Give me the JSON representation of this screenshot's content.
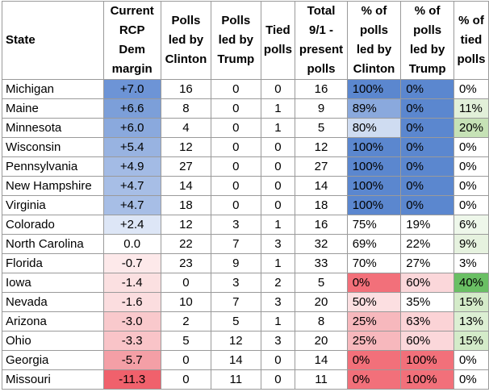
{
  "headers": {
    "state": "State",
    "margin_lines": [
      "Current",
      "RCP",
      "Dem",
      "margin"
    ],
    "clinton_lines": [
      "Polls",
      "led by",
      "Clinton"
    ],
    "trump_lines": [
      "Polls",
      "led by",
      "Trump"
    ],
    "tied_lines": [
      "Tied",
      "polls"
    ],
    "total_lines": [
      "Total",
      "9/1 -",
      "present",
      "polls"
    ],
    "pct_clinton_lines": [
      "% of",
      "polls",
      "led by",
      "Clinton"
    ],
    "pct_trump_lines": [
      "% of",
      "polls",
      "led by",
      "Trump"
    ],
    "pct_tied_lines": [
      "% of",
      "tied",
      "polls"
    ]
  },
  "rows": [
    {
      "state": "Michigan",
      "margin": "+7.0",
      "clinton": "16",
      "trump": "0",
      "tied": "0",
      "total": "16",
      "pct_clinton": "100%",
      "pct_trump": "0%",
      "pct_tied": "0%",
      "bg": {
        "margin": "#6d94d6",
        "pct_clinton": "#5b87cf",
        "pct_trump": "#5b87cf",
        "pct_tied": "#ffffff"
      }
    },
    {
      "state": "Maine",
      "margin": "+6.6",
      "clinton": "8",
      "trump": "0",
      "tied": "1",
      "total": "9",
      "pct_clinton": "89%",
      "pct_trump": "0%",
      "pct_tied": "11%",
      "bg": {
        "margin": "#7c9fd9",
        "pct_clinton": "#8aa9dd",
        "pct_trump": "#5b87cf",
        "pct_tied": "#e2f0d9"
      }
    },
    {
      "state": "Minnesota",
      "margin": "+6.0",
      "clinton": "4",
      "trump": "0",
      "tied": "1",
      "total": "5",
      "pct_clinton": "80%",
      "pct_trump": "0%",
      "pct_tied": "20%",
      "bg": {
        "margin": "#8aa9dd",
        "pct_clinton": "#cfdcf1",
        "pct_trump": "#5b87cf",
        "pct_tied": "#c6e2b6"
      }
    },
    {
      "state": "Wisconsin",
      "margin": "+5.4",
      "clinton": "12",
      "trump": "0",
      "tied": "0",
      "total": "12",
      "pct_clinton": "100%",
      "pct_trump": "0%",
      "pct_tied": "0%",
      "bg": {
        "margin": "#98b3e1",
        "pct_clinton": "#5b87cf",
        "pct_trump": "#5b87cf",
        "pct_tied": "#ffffff"
      }
    },
    {
      "state": "Pennsylvania",
      "margin": "+4.9",
      "clinton": "27",
      "trump": "0",
      "tied": "0",
      "total": "27",
      "pct_clinton": "100%",
      "pct_trump": "0%",
      "pct_tied": "0%",
      "bg": {
        "margin": "#a3bbe5",
        "pct_clinton": "#5b87cf",
        "pct_trump": "#5b87cf",
        "pct_tied": "#ffffff"
      }
    },
    {
      "state": "New Hampshire",
      "margin": "+4.7",
      "clinton": "14",
      "trump": "0",
      "tied": "0",
      "total": "14",
      "pct_clinton": "100%",
      "pct_trump": "0%",
      "pct_tied": "0%",
      "bg": {
        "margin": "#a7bee6",
        "pct_clinton": "#5b87cf",
        "pct_trump": "#5b87cf",
        "pct_tied": "#ffffff"
      }
    },
    {
      "state": "Virginia",
      "margin": "+4.7",
      "clinton": "18",
      "trump": "0",
      "tied": "0",
      "total": "18",
      "pct_clinton": "100%",
      "pct_trump": "0%",
      "pct_tied": "0%",
      "bg": {
        "margin": "#a7bee6",
        "pct_clinton": "#5b87cf",
        "pct_trump": "#5b87cf",
        "pct_tied": "#ffffff"
      }
    },
    {
      "state": "Colorado",
      "margin": "+2.4",
      "clinton": "12",
      "trump": "3",
      "tied": "1",
      "total": "16",
      "pct_clinton": "75%",
      "pct_trump": "19%",
      "pct_tied": "6%",
      "bg": {
        "margin": "#dde6f6",
        "pct_clinton": "#ffffff",
        "pct_trump": "#ffffff",
        "pct_tied": "#eef7ea"
      }
    },
    {
      "state": "North Carolina",
      "margin": "0.0",
      "clinton": "22",
      "trump": "7",
      "tied": "3",
      "total": "32",
      "pct_clinton": "69%",
      "pct_trump": "22%",
      "pct_tied": "9%",
      "bg": {
        "margin": "#ffffff",
        "pct_clinton": "#ffffff",
        "pct_trump": "#ffffff",
        "pct_tied": "#e6f2df"
      }
    },
    {
      "state": "Florida",
      "margin": "-0.7",
      "clinton": "23",
      "trump": "9",
      "tied": "1",
      "total": "33",
      "pct_clinton": "70%",
      "pct_trump": "27%",
      "pct_tied": "3%",
      "bg": {
        "margin": "#fde9ea",
        "pct_clinton": "#ffffff",
        "pct_trump": "#ffffff",
        "pct_tied": "#ffffff"
      }
    },
    {
      "state": "Iowa",
      "margin": "-1.4",
      "clinton": "0",
      "trump": "3",
      "tied": "2",
      "total": "5",
      "pct_clinton": "0%",
      "pct_trump": "60%",
      "pct_tied": "40%",
      "bg": {
        "margin": "#fbe0e1",
        "pct_clinton": "#f2707a",
        "pct_trump": "#fbd7da",
        "pct_tied": "#6abf64"
      }
    },
    {
      "state": "Nevada",
      "margin": "-1.6",
      "clinton": "10",
      "trump": "7",
      "tied": "3",
      "total": "20",
      "pct_clinton": "50%",
      "pct_trump": "35%",
      "pct_tied": "15%",
      "bg": {
        "margin": "#fbdddf",
        "pct_clinton": "#fcdfe1",
        "pct_trump": "#ffffff",
        "pct_tied": "#d4ebc9"
      }
    },
    {
      "state": "Arizona",
      "margin": "-3.0",
      "clinton": "2",
      "trump": "5",
      "tied": "1",
      "total": "8",
      "pct_clinton": "25%",
      "pct_trump": "63%",
      "pct_tied": "13%",
      "bg": {
        "margin": "#f9c9cc",
        "pct_clinton": "#f7b8bd",
        "pct_trump": "#fbd3d6",
        "pct_tied": "#dcefd3"
      }
    },
    {
      "state": "Ohio",
      "margin": "-3.3",
      "clinton": "5",
      "trump": "12",
      "tied": "3",
      "total": "20",
      "pct_clinton": "25%",
      "pct_trump": "60%",
      "pct_tied": "15%",
      "bg": {
        "margin": "#f9c4c8",
        "pct_clinton": "#f7b8bd",
        "pct_trump": "#fbd7da",
        "pct_tied": "#d4ebc9"
      }
    },
    {
      "state": "Georgia",
      "margin": "-5.7",
      "clinton": "0",
      "trump": "14",
      "tied": "0",
      "total": "14",
      "pct_clinton": "0%",
      "pct_trump": "100%",
      "pct_tied": "0%",
      "bg": {
        "margin": "#f49fa6",
        "pct_clinton": "#f2707a",
        "pct_trump": "#f2707a",
        "pct_tied": "#ffffff"
      }
    },
    {
      "state": "Missouri",
      "margin": "-11.3",
      "clinton": "0",
      "trump": "11",
      "tied": "0",
      "total": "11",
      "pct_clinton": "0%",
      "pct_trump": "100%",
      "pct_tied": "0%",
      "bg": {
        "margin": "#f0616c",
        "pct_clinton": "#f2707a",
        "pct_trump": "#f2707a",
        "pct_tied": "#ffffff"
      }
    }
  ]
}
